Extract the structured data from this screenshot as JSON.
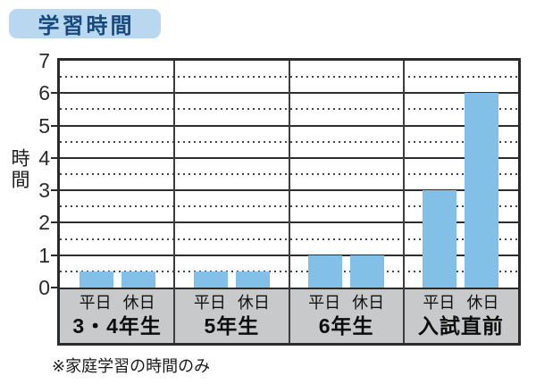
{
  "title_badge": {
    "label": "学習時間"
  },
  "y_axis": {
    "label": "時間"
  },
  "footnote": "※家庭学習の時間のみ",
  "chart_data": {
    "type": "bar",
    "title": "学習時間",
    "xlabel": "",
    "ylabel": "時間",
    "ylim": [
      0,
      7
    ],
    "yticks": [
      0,
      1,
      2,
      3,
      4,
      5,
      6,
      7
    ],
    "grid": {
      "major": "solid lines at integers",
      "minor": "dotted lines at half hours"
    },
    "legend_position": "none",
    "categories": [
      "3・4年生",
      "5年生",
      "6年生",
      "入試直前"
    ],
    "series": [
      {
        "name": "平日",
        "values": [
          0.5,
          0.5,
          1,
          3
        ]
      },
      {
        "name": "休日",
        "values": [
          0.5,
          0.5,
          1,
          6
        ]
      }
    ],
    "footnote": "※家庭学習の時間のみ"
  },
  "colors": {
    "bar": "#82C0E8",
    "badge_bg": "#B9D8F0",
    "badge_text": "#17497E",
    "band_bg": "#C8C9CA",
    "border": "#2B2B2B"
  }
}
